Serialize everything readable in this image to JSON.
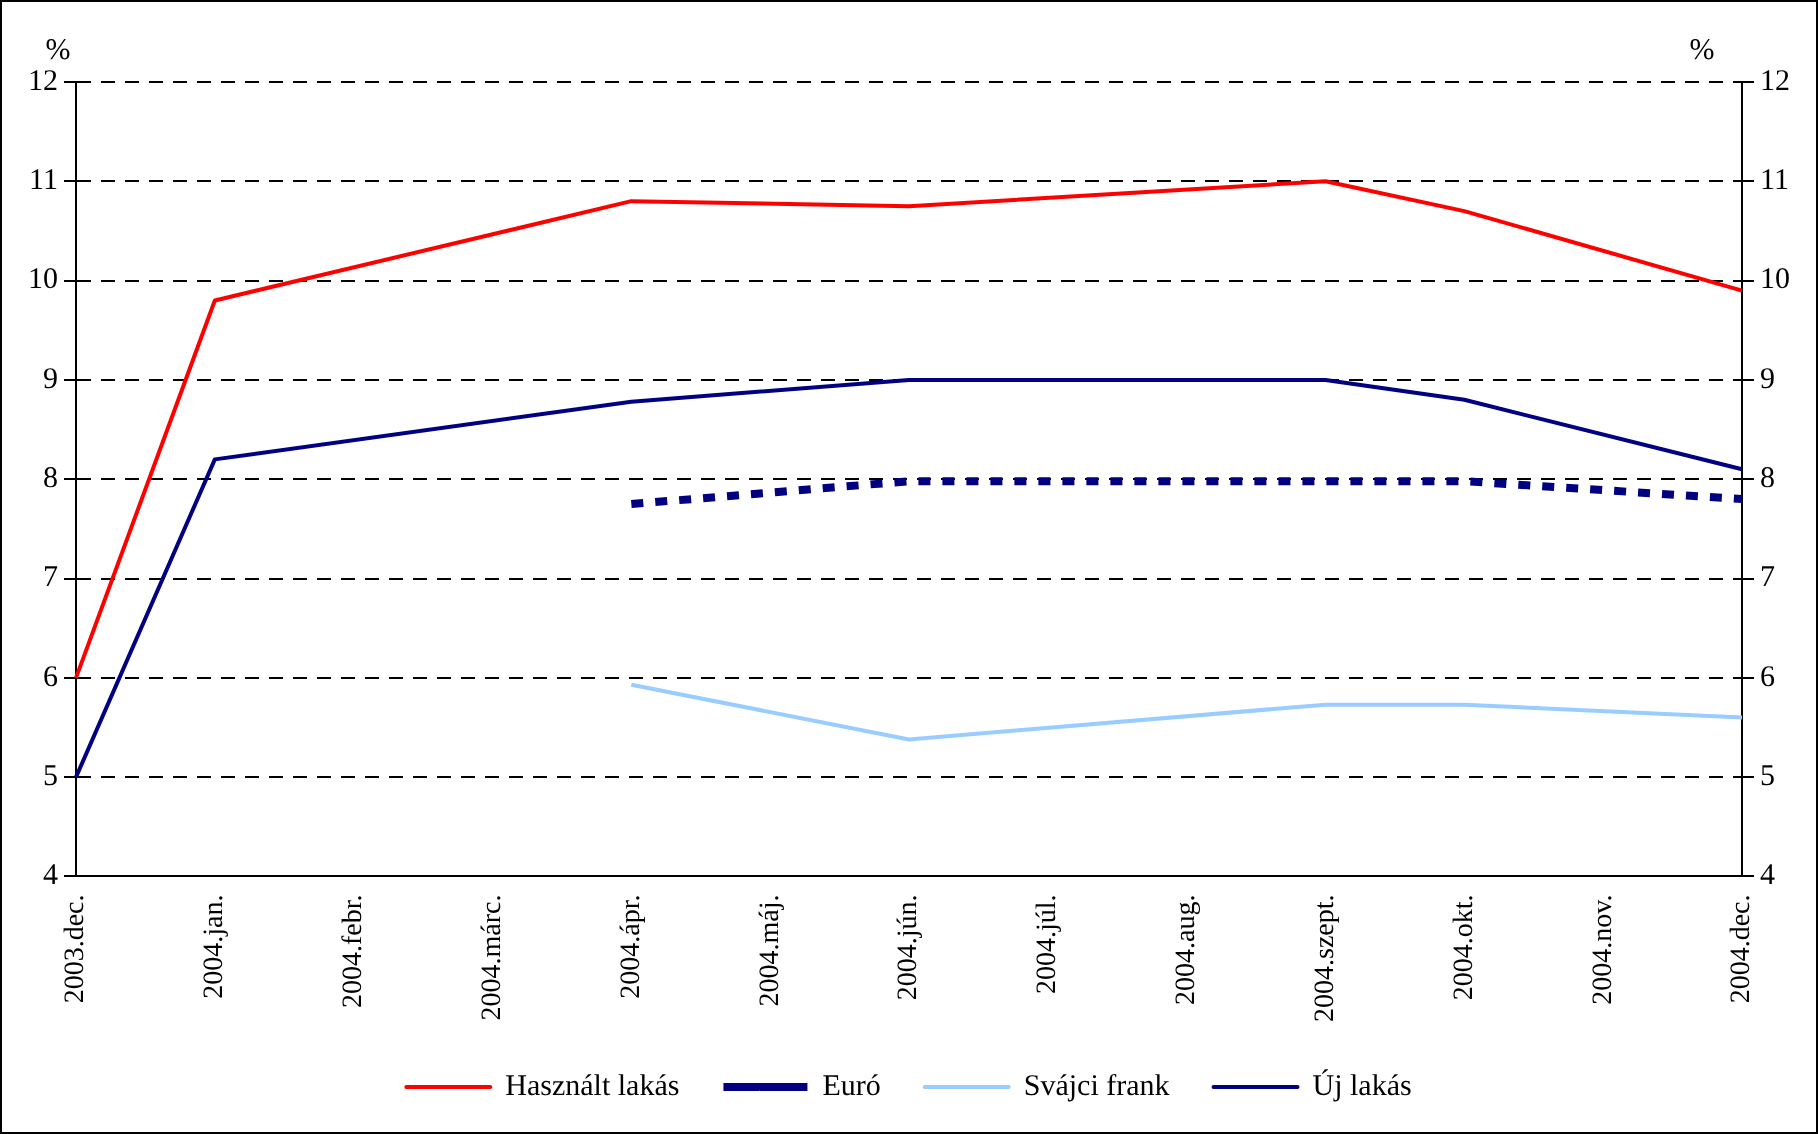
{
  "chart_data": {
    "type": "line",
    "ylabel": "%",
    "y2label": "%",
    "categories": [
      "2003.dec.",
      "2004.jan.",
      "2004.febr.",
      "2004.márc.",
      "2004.ápr.",
      "2004.máj.",
      "2004.jún.",
      "2004.júl.",
      "2004.aug.",
      "2004.szept.",
      "2004.okt.",
      "2004.nov.",
      "2004.dec."
    ],
    "series": [
      {
        "name": "Használt lakás",
        "color": "#ff0000",
        "line_style": "solid",
        "values": [
          6,
          9.8,
          null,
          null,
          10.8,
          null,
          10.75,
          null,
          null,
          11.0,
          10.7,
          null,
          9.9
        ]
      },
      {
        "name": "Euró",
        "color": "#000080",
        "line_style": "dotted",
        "values": [
          null,
          null,
          null,
          null,
          7.75,
          null,
          7.98,
          null,
          null,
          7.98,
          7.98,
          null,
          7.8
        ]
      },
      {
        "name": "Svájci frank",
        "color": "#99ccff",
        "line_style": "solid",
        "values": [
          null,
          null,
          null,
          null,
          5.93,
          null,
          5.38,
          null,
          null,
          5.73,
          5.73,
          null,
          5.6
        ]
      },
      {
        "name": "Új lakás",
        "color": "#000080",
        "line_style": "solid",
        "values": [
          5,
          8.2,
          null,
          null,
          8.78,
          null,
          9.0,
          null,
          null,
          9.0,
          8.8,
          null,
          8.1
        ]
      }
    ],
    "ylim": [
      4,
      12
    ],
    "yticks": [
      4,
      5,
      6,
      7,
      8,
      9,
      10,
      11,
      12
    ],
    "y2lim": [
      4,
      12
    ],
    "y2ticks": [
      4,
      5,
      6,
      7,
      8,
      9,
      10,
      11,
      12
    ],
    "grid": "y",
    "legend": "bottom",
    "marker": "none"
  }
}
